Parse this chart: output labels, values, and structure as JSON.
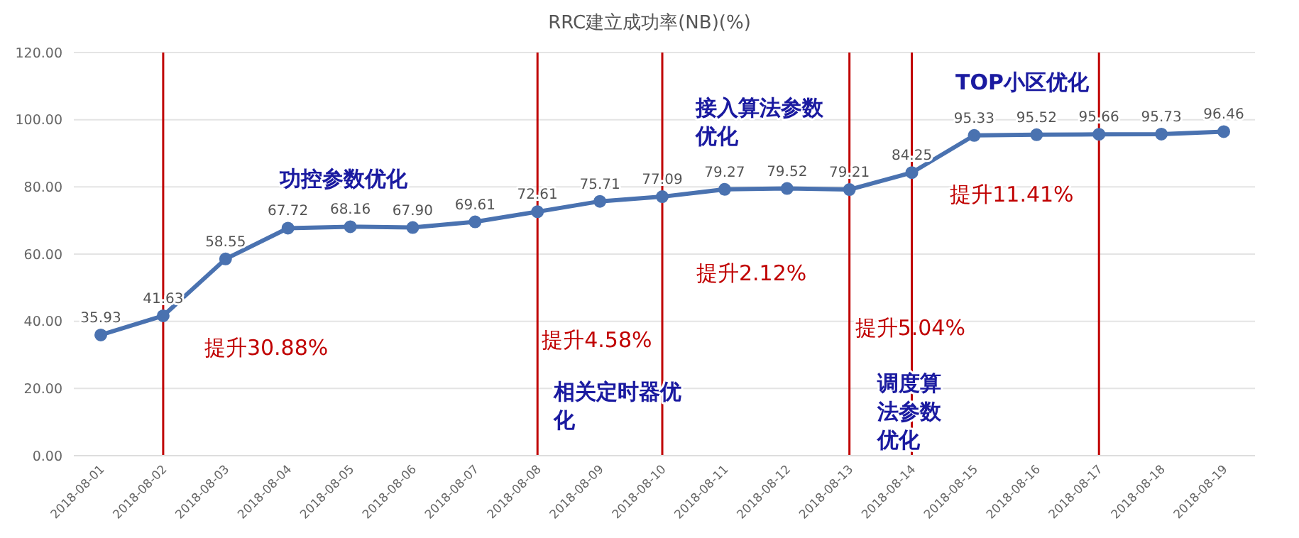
{
  "chart_data": {
    "type": "line",
    "title": "RRC建立成功率(NB)(%)",
    "categories": [
      "2018-08-01",
      "2018-08-02",
      "2018-08-03",
      "2018-08-04",
      "2018-08-05",
      "2018-08-06",
      "2018-08-07",
      "2018-08-08",
      "2018-08-09",
      "2018-08-10",
      "2018-08-11",
      "2018-08-12",
      "2018-08-13",
      "2018-08-14",
      "2018-08-15",
      "2018-08-16",
      "2018-08-17",
      "2018-08-18",
      "2018-08-19"
    ],
    "series": [
      {
        "color": "#4a72b0",
        "values": [
          35.93,
          41.63,
          58.55,
          67.72,
          68.16,
          67.9,
          69.61,
          72.61,
          75.71,
          77.09,
          79.27,
          79.52,
          79.21,
          84.25,
          95.33,
          95.52,
          95.66,
          95.73,
          96.46
        ],
        "value_labels": [
          "35.93",
          "41.63",
          "58.55",
          "67.72",
          "68.16",
          "67.90",
          "69.61",
          "72.61",
          "75.71",
          "77.09",
          "79.27",
          "79.52",
          "79.21",
          "84.25",
          "95.33",
          "95.52",
          "95.66",
          "95.73",
          "96.46"
        ]
      }
    ],
    "ylim": [
      0,
      120
    ],
    "yticks": [
      {
        "value": 0,
        "label": "0.00"
      },
      {
        "value": 20,
        "label": "20.00"
      },
      {
        "value": 40,
        "label": "40.00"
      },
      {
        "value": 60,
        "label": "60.00"
      },
      {
        "value": 80,
        "label": "80.00"
      },
      {
        "value": 100,
        "label": "100.00"
      },
      {
        "value": 120,
        "label": "120.00"
      }
    ],
    "grid": "y",
    "marker": "circle",
    "line_style": "solid",
    "ref_lines": [
      {
        "axis": "x",
        "value": "2018-08-02",
        "label": "提升30.88%",
        "color": "#c00000"
      },
      {
        "axis": "x",
        "value": "2018-08-08",
        "label": "提升4.58%",
        "color": "#c00000"
      },
      {
        "axis": "x",
        "value": "2018-08-10",
        "label": "提升2.12%",
        "color": "#c00000"
      },
      {
        "axis": "x",
        "value": "2018-08-13",
        "label": "提升5.04%",
        "color": "#c00000"
      },
      {
        "axis": "x",
        "value": "2018-08-14",
        "color": "#c00000"
      },
      {
        "axis": "x",
        "value": "2018-08-17",
        "label": "提升11.41%",
        "color": "#c00000"
      }
    ],
    "annotations": [
      "功控参数优化",
      "接入算法参数优化",
      "TOP小区优化",
      "相关定时器优化",
      "调度算法参数优化"
    ]
  }
}
